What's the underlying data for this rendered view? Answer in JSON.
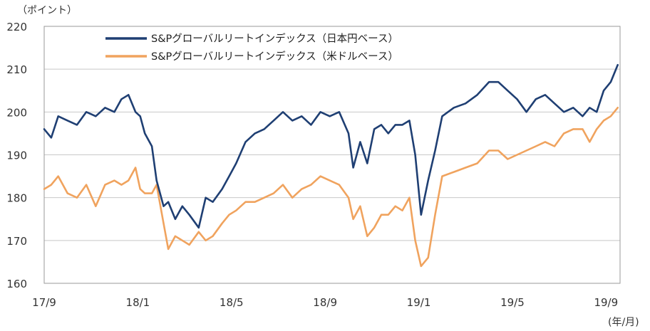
{
  "chart_data": {
    "type": "line",
    "y_unit": "（ポイント）",
    "x_unit": "(年/月)",
    "ylim": [
      160,
      220
    ],
    "yticks": [
      160,
      170,
      180,
      190,
      200,
      210,
      220
    ],
    "xlim": [
      0,
      24.6
    ],
    "xticks": [
      {
        "label": "17/9",
        "x": 0
      },
      {
        "label": "18/1",
        "x": 4
      },
      {
        "label": "18/5",
        "x": 8
      },
      {
        "label": "18/9",
        "x": 12
      },
      {
        "label": "19/1",
        "x": 16
      },
      {
        "label": "19/5",
        "x": 20
      },
      {
        "label": "19/9",
        "x": 24
      }
    ],
    "grid": true,
    "legend_position": "top-center",
    "series": [
      {
        "name": "S&Pグローバルリートインデックス（日本円ベース）",
        "color": "#1f3f73",
        "x": [
          0,
          0.3,
          0.6,
          1.0,
          1.4,
          1.8,
          2.2,
          2.6,
          3.0,
          3.3,
          3.6,
          3.9,
          4.1,
          4.3,
          4.6,
          4.8,
          5.1,
          5.3,
          5.6,
          5.9,
          6.2,
          6.6,
          6.9,
          7.2,
          7.6,
          7.9,
          8.2,
          8.6,
          9.0,
          9.4,
          9.8,
          10.2,
          10.6,
          11.0,
          11.4,
          11.8,
          12.2,
          12.6,
          13.0,
          13.2,
          13.5,
          13.8,
          14.1,
          14.4,
          14.7,
          15.0,
          15.3,
          15.6,
          15.85,
          16.1,
          16.4,
          16.7,
          17.0,
          17.5,
          18.0,
          18.5,
          19.0,
          19.4,
          19.8,
          20.2,
          20.6,
          21.0,
          21.4,
          21.8,
          22.2,
          22.6,
          23.0,
          23.3,
          23.6,
          23.9,
          24.2,
          24.5
        ],
        "y": [
          196,
          194,
          199,
          198,
          197,
          200,
          199,
          201,
          200,
          203,
          204,
          200,
          199,
          195,
          192,
          184,
          178,
          179,
          175,
          178,
          176,
          173,
          180,
          179,
          182,
          185,
          188,
          193,
          195,
          196,
          198,
          200,
          198,
          199,
          197,
          200,
          199,
          200,
          195,
          187,
          193,
          188,
          196,
          197,
          195,
          197,
          197,
          198,
          190,
          176,
          184,
          191,
          199,
          201,
          202,
          204,
          207,
          207,
          205,
          203,
          200,
          203,
          204,
          202,
          200,
          201,
          199,
          201,
          200,
          205,
          207,
          211
        ]
      },
      {
        "name": "S&Pグローバルリートインデックス（米ドルベース）",
        "color": "#f0a35e",
        "x": [
          0,
          0.3,
          0.6,
          1.0,
          1.4,
          1.8,
          2.2,
          2.6,
          3.0,
          3.3,
          3.6,
          3.9,
          4.1,
          4.3,
          4.6,
          4.8,
          5.1,
          5.3,
          5.6,
          5.9,
          6.2,
          6.6,
          6.9,
          7.2,
          7.6,
          7.9,
          8.2,
          8.6,
          9.0,
          9.4,
          9.8,
          10.2,
          10.6,
          11.0,
          11.4,
          11.8,
          12.2,
          12.6,
          13.0,
          13.2,
          13.5,
          13.8,
          14.1,
          14.4,
          14.7,
          15.0,
          15.3,
          15.6,
          15.85,
          16.1,
          16.4,
          16.7,
          17.0,
          17.5,
          18.0,
          18.5,
          19.0,
          19.4,
          19.8,
          20.2,
          20.6,
          21.0,
          21.4,
          21.8,
          22.2,
          22.6,
          23.0,
          23.3,
          23.6,
          23.9,
          24.2,
          24.5
        ],
        "y": [
          182,
          183,
          185,
          181,
          180,
          183,
          178,
          183,
          184,
          183,
          184,
          187,
          182,
          181,
          181,
          183,
          174,
          168,
          171,
          170,
          169,
          172,
          170,
          171,
          174,
          176,
          177,
          179,
          179,
          180,
          181,
          183,
          180,
          182,
          183,
          185,
          184,
          183,
          180,
          175,
          178,
          171,
          173,
          176,
          176,
          178,
          177,
          180,
          170,
          164,
          166,
          176,
          185,
          186,
          187,
          188,
          191,
          191,
          189,
          190,
          191,
          192,
          193,
          192,
          195,
          196,
          196,
          193,
          196,
          198,
          199,
          201
        ]
      }
    ]
  }
}
